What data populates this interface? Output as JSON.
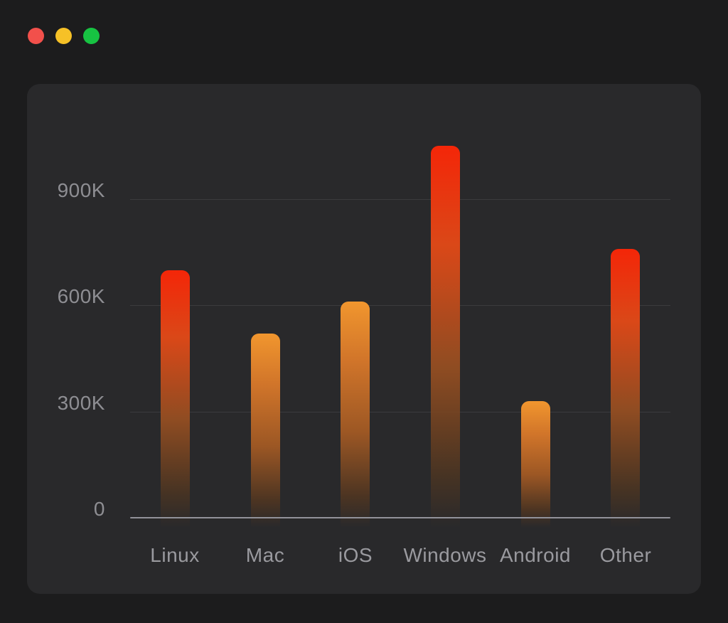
{
  "window": {
    "controls": [
      {
        "name": "close",
        "color": "#f2504b"
      },
      {
        "name": "minimize",
        "color": "#f6c127"
      },
      {
        "name": "maximize",
        "color": "#17c342"
      }
    ]
  },
  "chart_data": {
    "type": "bar",
    "title": "",
    "categories": [
      "Linux",
      "Mac",
      "iOS",
      "Windows",
      "Android",
      "Other"
    ],
    "values": [
      700000,
      520000,
      610000,
      1050000,
      330000,
      760000
    ],
    "y_ticks": [
      {
        "label": "900K",
        "value": 900000
      },
      {
        "label": "600K",
        "value": 600000
      },
      {
        "label": "300K",
        "value": 300000
      },
      {
        "label": "0",
        "value": 0
      }
    ],
    "ylim": [
      0,
      1100000
    ],
    "grid": "horizontal-lines",
    "legend": "none",
    "bar_color_styles": [
      "red",
      "orange",
      "orange",
      "red",
      "orange",
      "red"
    ],
    "palette": {
      "red": {
        "top": "#f42608",
        "upper": "#da4818",
        "lower": "#8f4c22",
        "fade": "rgba(82,55,32,0.75)"
      },
      "orange": {
        "top": "#f1962e",
        "upper": "#d1752a",
        "lower": "#9c5724",
        "fade": "rgba(88,56,31,0.75)"
      }
    },
    "axis_color": "#92929a",
    "gridline_color": "#3b3b3e",
    "tick_label_color": "#8e8e93",
    "category_label_color": "#9a9a9f"
  },
  "colors": {
    "background": "#1c1c1d",
    "card_background": "#29292b"
  }
}
